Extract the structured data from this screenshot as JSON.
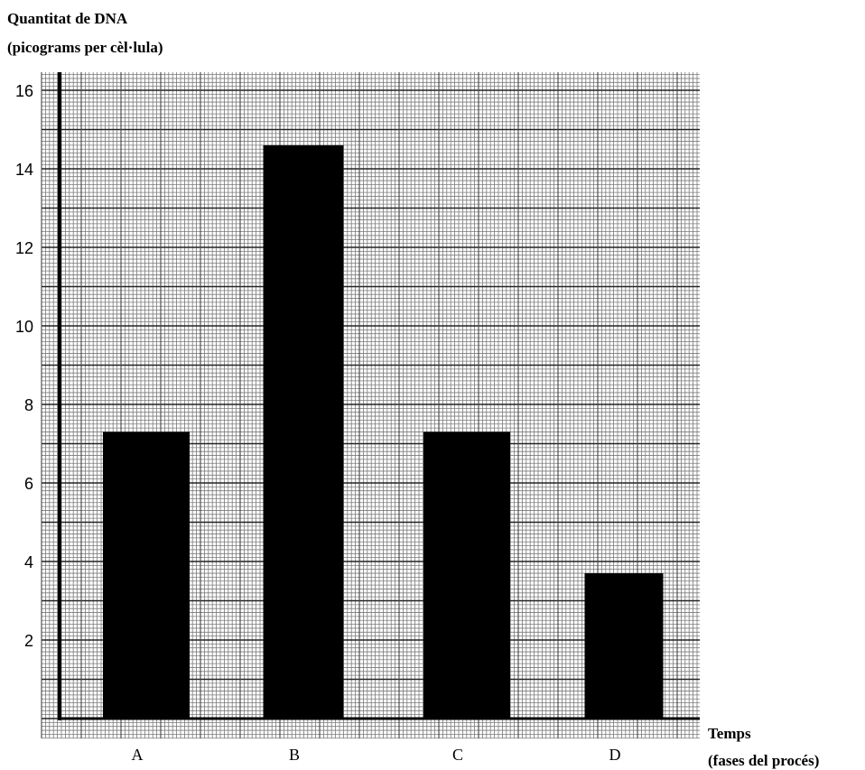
{
  "chart_data": {
    "type": "bar",
    "title": "",
    "ylabel": [
      "Quantitat de DNA",
      "(picograms per cèl·lula)"
    ],
    "xlabel": [
      "Temps",
      "(fases del procés)"
    ],
    "categories": [
      "A",
      "B",
      "C",
      "D"
    ],
    "values": [
      7.3,
      14.6,
      7.3,
      3.7
    ],
    "yticks": [
      "2",
      "4",
      "6",
      "8",
      "10",
      "12",
      "14",
      "16"
    ],
    "ylim": [
      0,
      16.4
    ],
    "grid": true,
    "bar_color": "#000000",
    "grid_color": "#7a7a7a"
  }
}
